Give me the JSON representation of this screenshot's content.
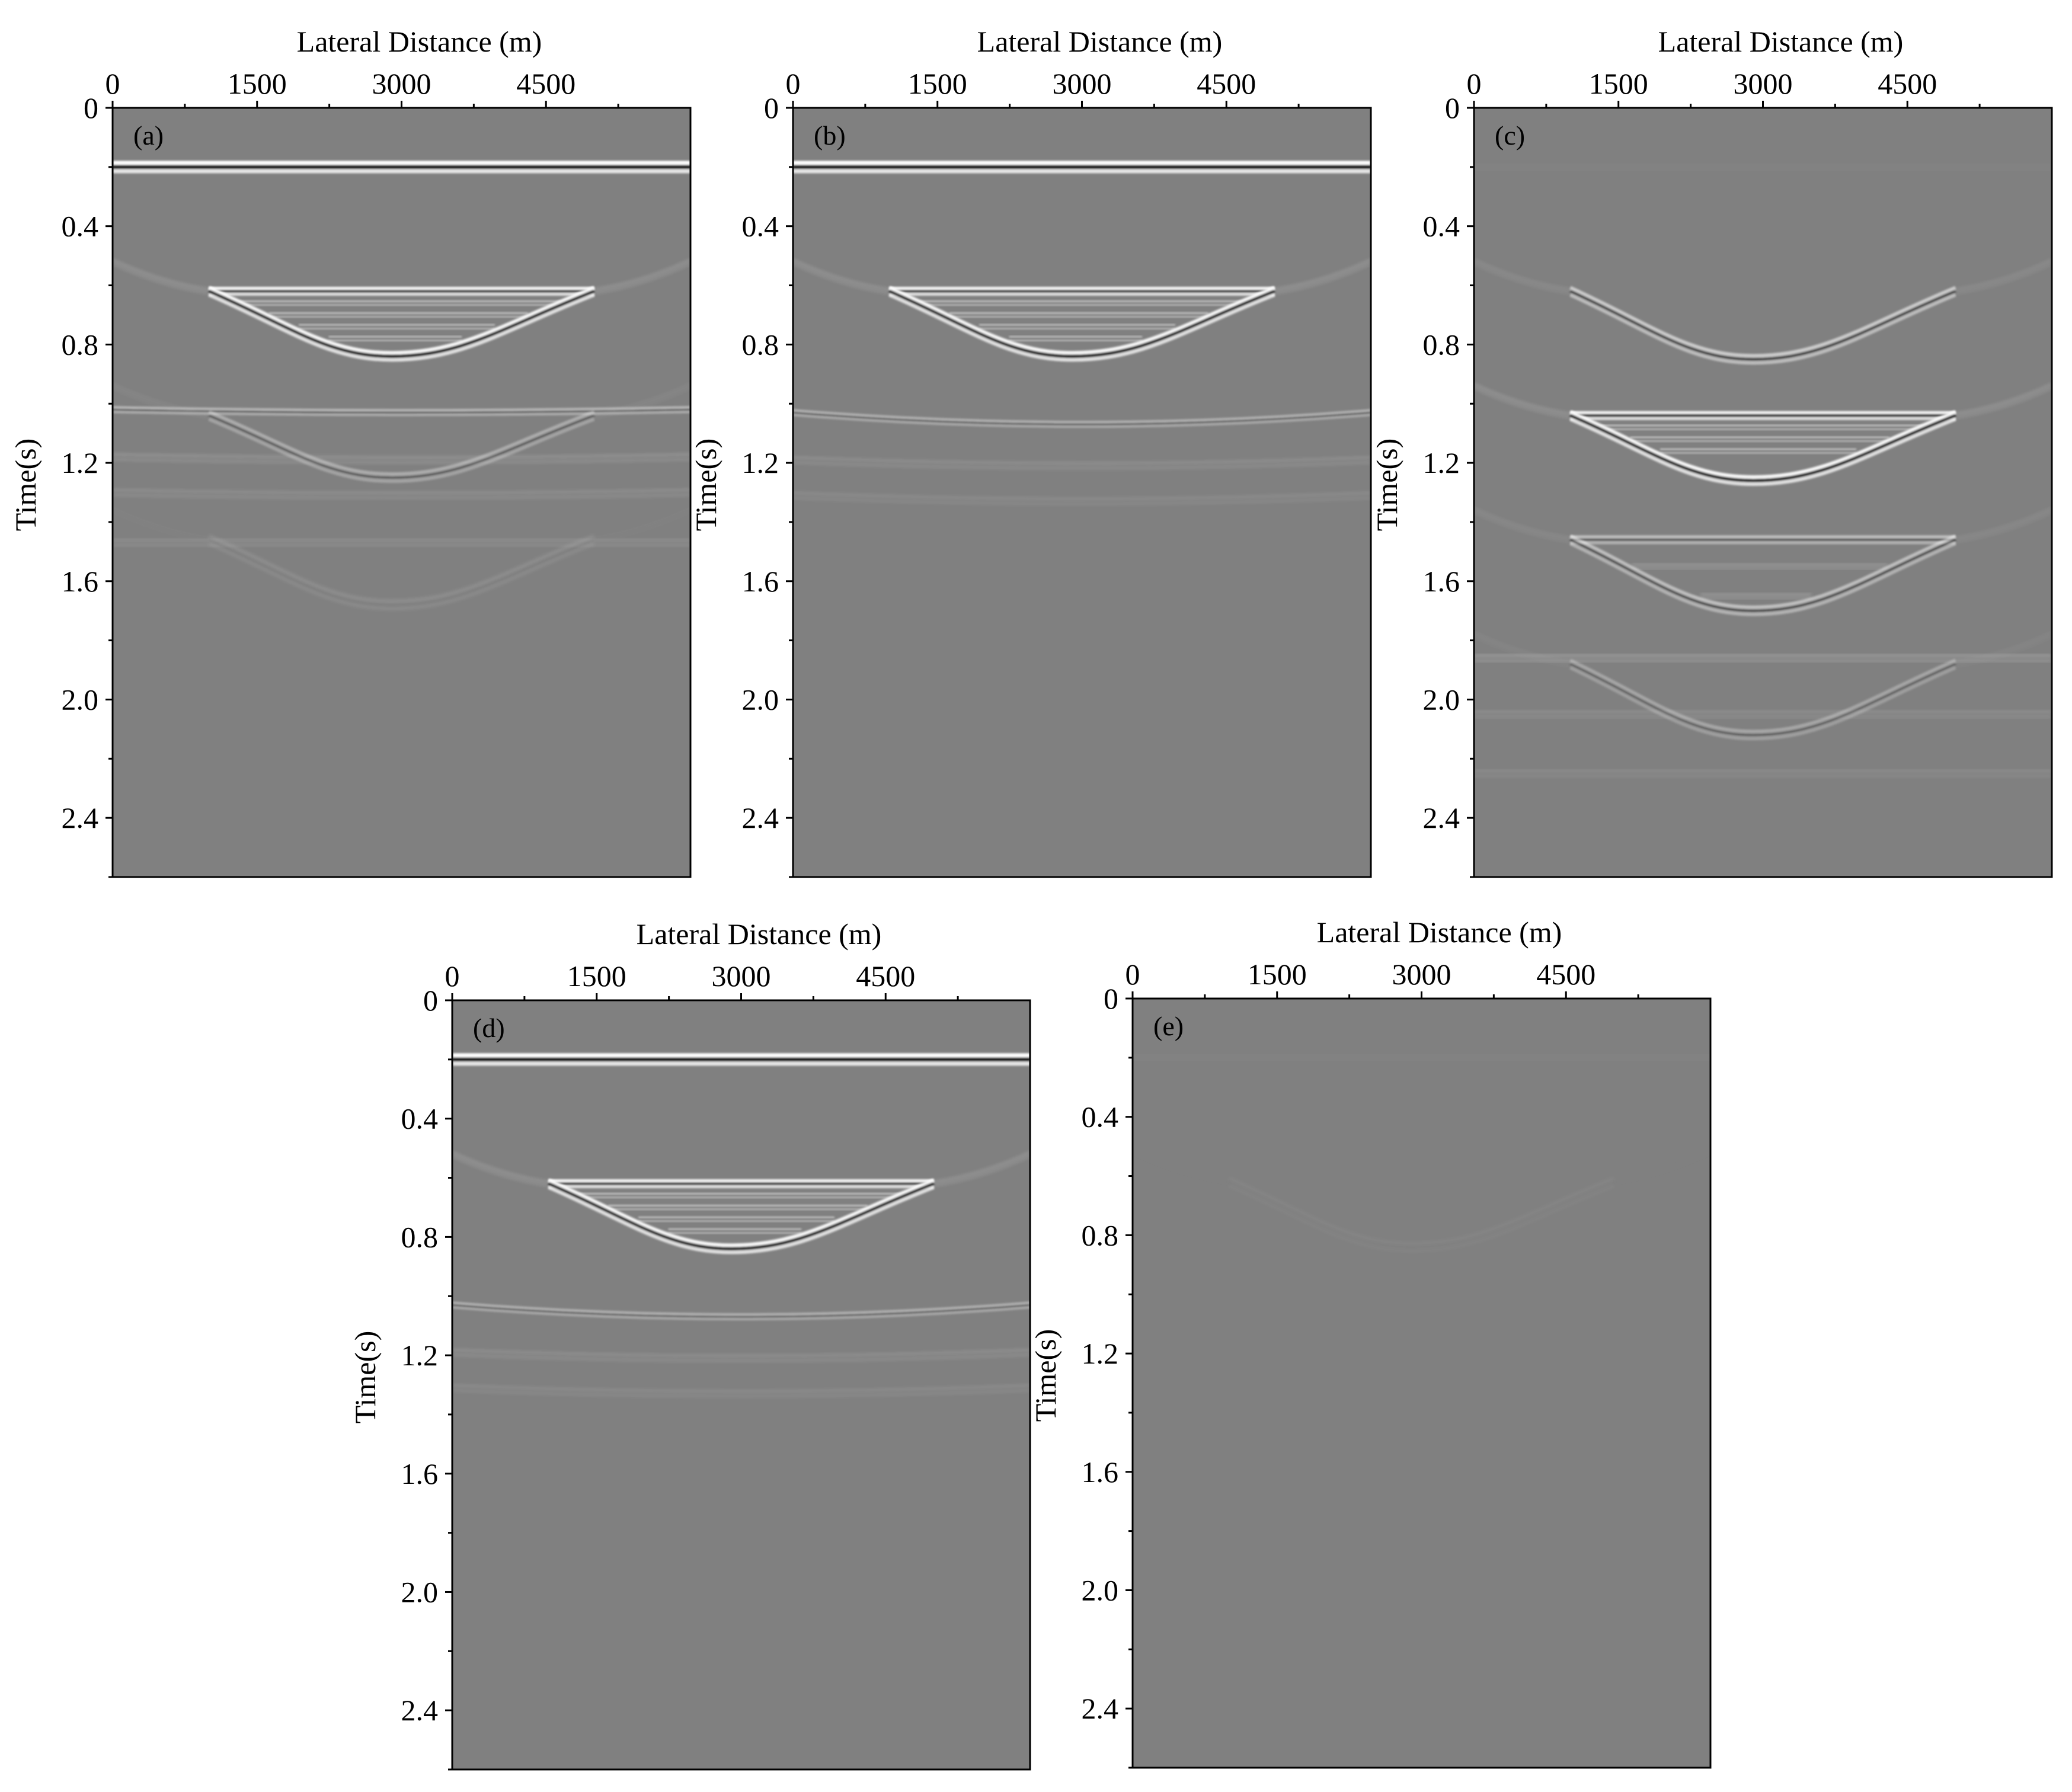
{
  "chart_data": [
    {
      "type": "heatmap",
      "label": "(a)",
      "xlabel": "Lateral Distance (m)",
      "ylabel": "Time(s)",
      "xticks": [
        "0",
        "1500",
        "3000",
        "4500"
      ],
      "xtick_values": [
        0,
        1500,
        3000,
        4500
      ],
      "yticks": [
        "0",
        "0.4",
        "0.8",
        "1.2",
        "1.6",
        "2.0",
        "2.4"
      ],
      "ytick_values": [
        0,
        0.4,
        0.8,
        1.2,
        1.6,
        2.0,
        2.4
      ],
      "xlim": [
        0,
        6000
      ],
      "ylim": [
        2.6,
        0
      ],
      "events": {
        "direct_wave": {
          "time": 0.2,
          "amplitude": 1.0
        },
        "flat_reflectors": [
          {
            "x": [
              0,
              6000
            ],
            "t0": 1.02,
            "t1": 1.03,
            "amplitude": 0.45
          },
          {
            "x": [
              0,
              6000
            ],
            "t0": 1.18,
            "t1": 1.19,
            "amplitude": 0.18
          },
          {
            "x": [
              0,
              6000
            ],
            "t0": 1.3,
            "t1": 1.31,
            "amplitude": 0.15
          },
          {
            "x": [
              0,
              6000
            ],
            "t0": 1.47,
            "t1": 1.47,
            "amplitude": 0.15
          }
        ],
        "primary_bowl": {
          "x_left": 1000,
          "x_right": 5000,
          "x_apex": 2900,
          "t_top": 0.62,
          "t_apex": 0.84,
          "amplitude": 0.95,
          "layers": [
            0.62,
            0.66,
            0.7,
            0.74,
            0.78
          ]
        },
        "multiple_bowls": [
          {
            "x_left": 1000,
            "x_right": 5000,
            "x_apex": 2900,
            "t_top": 1.04,
            "t_apex": 1.25,
            "amplitude": 0.35
          },
          {
            "x_left": 1000,
            "x_right": 5000,
            "x_apex": 2900,
            "t_top": 1.46,
            "t_apex": 1.68,
            "amplitude": 0.12
          }
        ]
      }
    },
    {
      "type": "heatmap",
      "label": "(b)",
      "xlabel": "Lateral Distance (m)",
      "ylabel": "Time(s)",
      "xticks": [
        "0",
        "1500",
        "3000",
        "4500"
      ],
      "xtick_values": [
        0,
        1500,
        3000,
        4500
      ],
      "yticks": [
        "0",
        "0.4",
        "0.8",
        "1.2",
        "1.6",
        "2.0",
        "2.4"
      ],
      "ytick_values": [
        0,
        0.4,
        0.8,
        1.2,
        1.6,
        2.0,
        2.4
      ],
      "xlim": [
        0,
        6000
      ],
      "ylim": [
        2.6,
        0
      ],
      "events": {
        "direct_wave": {
          "time": 0.2,
          "amplitude": 1.0
        },
        "flat_reflectors": [
          {
            "x": [
              0,
              6000
            ],
            "t0": 1.03,
            "t1": 1.07,
            "amplitude": 0.4
          },
          {
            "x": [
              0,
              6000
            ],
            "t0": 1.19,
            "t1": 1.21,
            "amplitude": 0.15
          },
          {
            "x": [
              0,
              6000
            ],
            "t0": 1.31,
            "t1": 1.33,
            "amplitude": 0.12
          }
        ],
        "primary_bowl": {
          "x_left": 1000,
          "x_right": 5000,
          "x_apex": 2900,
          "t_top": 0.62,
          "t_apex": 0.84,
          "amplitude": 0.95,
          "layers": [
            0.62,
            0.66,
            0.7,
            0.74,
            0.78
          ]
        },
        "multiple_bowls": []
      }
    },
    {
      "type": "heatmap",
      "label": "(c)",
      "xlabel": "Lateral Distance (m)",
      "ylabel": "Time(s)",
      "xticks": [
        "0",
        "1500",
        "3000",
        "4500"
      ],
      "xtick_values": [
        0,
        1500,
        3000,
        4500
      ],
      "yticks": [
        "0",
        "0.4",
        "0.8",
        "1.2",
        "1.6",
        "2.0",
        "2.4"
      ],
      "ytick_values": [
        0,
        0.4,
        0.8,
        1.2,
        1.6,
        2.0,
        2.4
      ],
      "xlim": [
        0,
        6000
      ],
      "ylim": [
        2.6,
        0
      ],
      "events": {
        "direct_wave": {
          "time": 0.2,
          "amplitude": 0.05
        },
        "flat_reflectors": [
          {
            "x": [
              0,
              6000
            ],
            "t0": 1.86,
            "t1": 1.86,
            "amplitude": 0.25
          },
          {
            "x": [
              0,
              6000
            ],
            "t0": 2.05,
            "t1": 2.05,
            "amplitude": 0.15
          },
          {
            "x": [
              0,
              6000
            ],
            "t0": 2.25,
            "t1": 2.25,
            "amplitude": 0.12
          }
        ],
        "primary_bowl": {
          "x_left": 1000,
          "x_right": 5000,
          "x_apex": 2900,
          "t_top": 0.62,
          "t_apex": 0.85,
          "amplitude": 0.6,
          "layers": []
        },
        "multiple_bowls": [
          {
            "x_left": 1000,
            "x_right": 5000,
            "x_apex": 2900,
            "t_top": 1.04,
            "t_apex": 1.26,
            "amplitude": 0.95,
            "layers": [
              1.04,
              1.08,
              1.12,
              1.16
            ]
          },
          {
            "x_left": 1000,
            "x_right": 5000,
            "x_apex": 2900,
            "t_top": 1.46,
            "t_apex": 1.7,
            "amplitude": 0.5,
            "layers": [
              1.46,
              1.55,
              1.65
            ]
          },
          {
            "x_left": 1000,
            "x_right": 5000,
            "x_apex": 2900,
            "t_top": 1.88,
            "t_apex": 2.12,
            "amplitude": 0.3,
            "layers": []
          }
        ]
      }
    },
    {
      "type": "heatmap",
      "label": "(d)",
      "xlabel": "Lateral Distance (m)",
      "ylabel": "Time(s)",
      "xticks": [
        "0",
        "1500",
        "3000",
        "4500"
      ],
      "xtick_values": [
        0,
        1500,
        3000,
        4500
      ],
      "yticks": [
        "0",
        "0.4",
        "0.8",
        "1.2",
        "1.6",
        "2.0",
        "2.4"
      ],
      "ytick_values": [
        0,
        0.4,
        0.8,
        1.2,
        1.6,
        2.0,
        2.4
      ],
      "xlim": [
        0,
        6000
      ],
      "ylim": [
        2.6,
        0
      ],
      "events": {
        "direct_wave": {
          "time": 0.2,
          "amplitude": 1.0
        },
        "flat_reflectors": [
          {
            "x": [
              0,
              6000
            ],
            "t0": 1.03,
            "t1": 1.07,
            "amplitude": 0.4
          },
          {
            "x": [
              0,
              6000
            ],
            "t0": 1.19,
            "t1": 1.21,
            "amplitude": 0.15
          },
          {
            "x": [
              0,
              6000
            ],
            "t0": 1.31,
            "t1": 1.33,
            "amplitude": 0.12
          }
        ],
        "primary_bowl": {
          "x_left": 1000,
          "x_right": 5000,
          "x_apex": 2900,
          "t_top": 0.62,
          "t_apex": 0.84,
          "amplitude": 0.95,
          "layers": [
            0.62,
            0.66,
            0.7,
            0.74,
            0.78
          ]
        },
        "multiple_bowls": []
      }
    },
    {
      "type": "heatmap",
      "label": "(e)",
      "xlabel": "Lateral Distance (m)",
      "ylabel": "Time(s)",
      "xticks": [
        "0",
        "1500",
        "3000",
        "4500"
      ],
      "xtick_values": [
        0,
        1500,
        3000,
        4500
      ],
      "yticks": [
        "0",
        "0.4",
        "0.8",
        "1.2",
        "1.6",
        "2.0",
        "2.4"
      ],
      "ytick_values": [
        0,
        0.4,
        0.8,
        1.2,
        1.6,
        2.0,
        2.4
      ],
      "xlim": [
        0,
        6000
      ],
      "ylim": [
        2.6,
        0
      ],
      "events": {
        "direct_wave": {
          "time": 0.2,
          "amplitude": 0.04
        },
        "flat_reflectors": [],
        "primary_bowl": {
          "x_left": 1000,
          "x_right": 5000,
          "x_apex": 2900,
          "t_top": 0.62,
          "t_apex": 0.84,
          "amplitude": 0.04,
          "layers": []
        },
        "multiple_bowls": []
      }
    }
  ],
  "colors": {
    "background": "#808080",
    "peak": "#ffffff",
    "trough": "#000000"
  }
}
